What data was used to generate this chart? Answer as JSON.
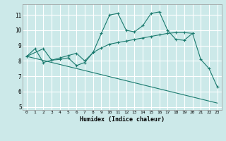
{
  "xlabel": "Humidex (Indice chaleur)",
  "xlim": [
    -0.5,
    23.5
  ],
  "ylim": [
    4.8,
    11.7
  ],
  "yticks": [
    5,
    6,
    7,
    8,
    9,
    10,
    11
  ],
  "xticks": [
    0,
    1,
    2,
    3,
    4,
    5,
    6,
    7,
    8,
    9,
    10,
    11,
    12,
    13,
    14,
    15,
    16,
    17,
    18,
    19,
    20,
    21,
    22,
    23
  ],
  "bg_color": "#cce9e9",
  "line_color": "#1a7a6e",
  "grid_color": "#ffffff",
  "line1_x": [
    0,
    1,
    2,
    3,
    4,
    5,
    6,
    7,
    8,
    9,
    10,
    11,
    12,
    13,
    14,
    15,
    16,
    17,
    18,
    19,
    20,
    21,
    22,
    23
  ],
  "line1_y": [
    8.3,
    8.8,
    7.9,
    8.05,
    8.1,
    8.2,
    7.7,
    7.9,
    8.55,
    9.8,
    11.0,
    11.1,
    10.0,
    9.9,
    10.3,
    11.1,
    11.2,
    10.0,
    9.4,
    9.35,
    9.8,
    8.1,
    7.5,
    6.3
  ],
  "line2_x": [
    0,
    2,
    3,
    4,
    5,
    6,
    7,
    8,
    9,
    10,
    11,
    12,
    13,
    14,
    15,
    16,
    17,
    18,
    19,
    20
  ],
  "line2_y": [
    8.3,
    8.8,
    8.05,
    8.2,
    8.35,
    8.5,
    8.0,
    8.55,
    8.85,
    9.1,
    9.2,
    9.3,
    9.4,
    9.5,
    9.6,
    9.7,
    9.8,
    9.85,
    9.85,
    9.8
  ],
  "line3_x": [
    0,
    23
  ],
  "line3_y": [
    8.3,
    5.25
  ]
}
